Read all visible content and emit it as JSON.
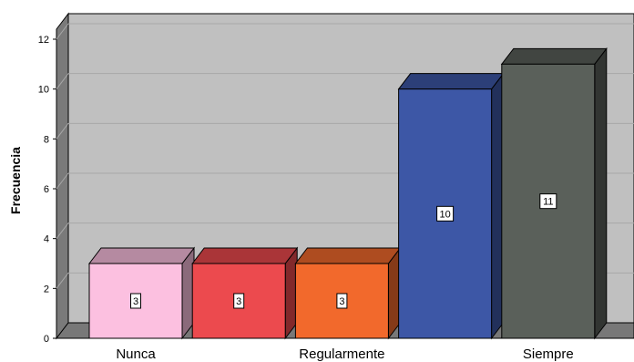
{
  "chart_data": {
    "type": "bar",
    "categories": [
      "Nunca",
      "",
      "Regularmente",
      "",
      "Siempre"
    ],
    "values": [
      3,
      3,
      3,
      10,
      11
    ],
    "data_labels": [
      "3",
      "3",
      "3",
      "10",
      "11"
    ],
    "bar_colors": [
      "#fcc0e0",
      "#ec4a4e",
      "#f2692c",
      "#3d57a6",
      "#5a605a"
    ],
    "xlabel": "",
    "ylabel": "Frecuencia",
    "ylim": [
      0,
      12.5
    ],
    "yticks": [
      0,
      2,
      4,
      6,
      8,
      10,
      12
    ],
    "grid": true,
    "style": "3d",
    "wall_color": "#c0c0c0",
    "floor_color": "#787878"
  }
}
